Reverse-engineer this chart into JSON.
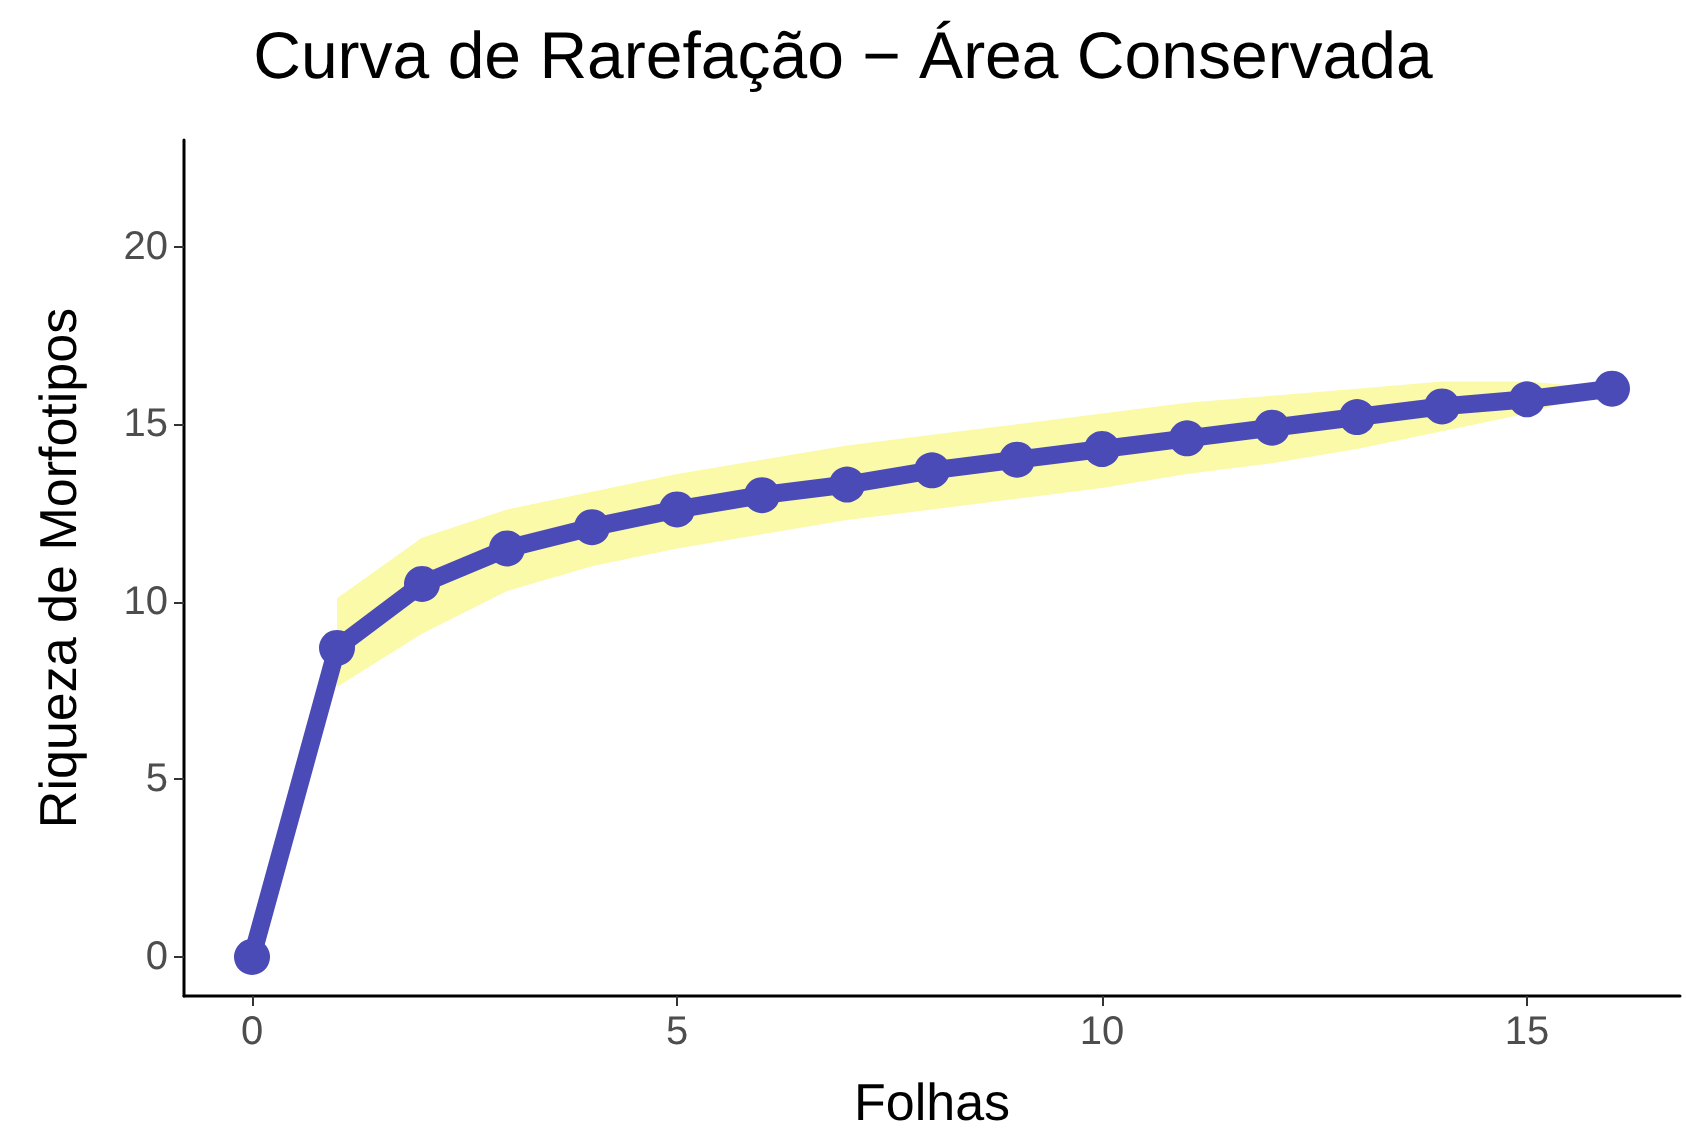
{
  "chart_data": {
    "type": "line",
    "title": "Curva de Rarefação − Área Conservada",
    "xlabel": "Folhas",
    "ylabel": "Riqueza de Morfotipos",
    "x": [
      0,
      1,
      2,
      3,
      4,
      5,
      6,
      7,
      8,
      9,
      10,
      11,
      12,
      13,
      14,
      15,
      16
    ],
    "series": [
      {
        "color": "#4b4bb8",
        "values": [
          0,
          8.7,
          10.5,
          11.5,
          12.1,
          12.6,
          13.0,
          13.3,
          13.7,
          14.0,
          14.3,
          14.6,
          14.9,
          15.2,
          15.5,
          15.7,
          16.0
        ],
        "lower": [
          null,
          7.6,
          9.1,
          10.3,
          11.0,
          11.5,
          11.9,
          12.3,
          12.6,
          12.9,
          13.2,
          13.6,
          13.9,
          14.3,
          14.8,
          15.3,
          16.0
        ],
        "upper": [
          null,
          10.1,
          11.8,
          12.6,
          13.1,
          13.6,
          14.0,
          14.4,
          14.7,
          15.0,
          15.3,
          15.6,
          15.8,
          16.0,
          16.2,
          16.2,
          16.0
        ]
      }
    ],
    "xlim": [
      -0.8,
      16.8
    ],
    "xticks": [
      0,
      5,
      10,
      15
    ],
    "ylim": [
      -1.1,
      23
    ],
    "yticks": [
      0,
      5,
      10,
      15,
      20
    ],
    "marker": "circle",
    "line_style": "solid"
  }
}
